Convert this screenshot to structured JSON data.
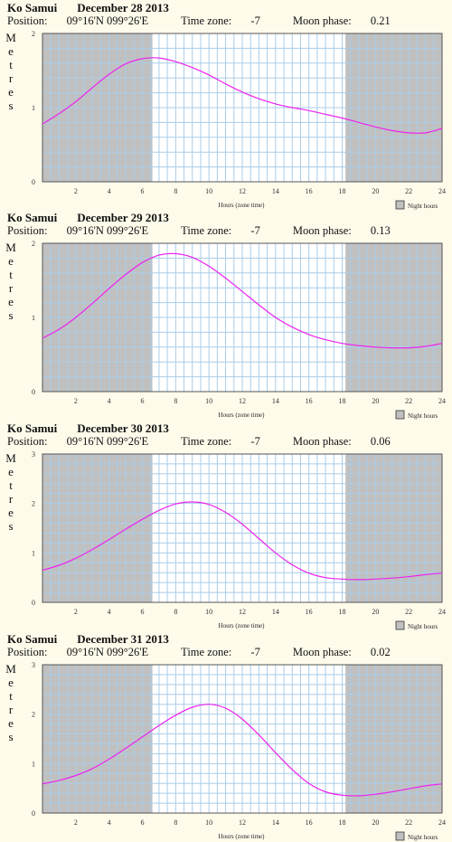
{
  "chart_data": [
    {
      "type": "line",
      "location": "Ko Samui",
      "date": "December 28 2013",
      "position_label": "Position:",
      "position": "09°16'N 099°26'E",
      "timezone_label": "Time zone:",
      "timezone": "-7",
      "moon_label": "Moon phase:",
      "moon_phase": "0.21",
      "ylabel": "Metres",
      "xlabel": "Hours (zone time)",
      "legend": "Night hours",
      "xlim": [
        0,
        24
      ],
      "ylim": [
        0,
        2
      ],
      "yticks": [
        "0",
        "1",
        "2"
      ],
      "xticks": [
        "2",
        "4",
        "6",
        "8",
        "10",
        "12",
        "14",
        "16",
        "18",
        "20",
        "22",
        "24"
      ],
      "night": [
        [
          0,
          6.6
        ],
        [
          18.2,
          24
        ]
      ],
      "x": [
        0,
        1,
        2,
        3,
        4,
        5,
        6,
        7,
        8,
        9,
        10,
        11,
        12,
        13,
        14,
        15,
        16,
        17,
        18,
        19,
        20,
        21,
        22,
        23,
        24
      ],
      "series": [
        {
          "color": "#ee22ee",
          "values": [
            0.78,
            0.92,
            1.08,
            1.27,
            1.45,
            1.59,
            1.66,
            1.67,
            1.62,
            1.54,
            1.44,
            1.32,
            1.21,
            1.12,
            1.05,
            1.0,
            0.96,
            0.91,
            0.86,
            0.8,
            0.74,
            0.69,
            0.66,
            0.66,
            0.72
          ]
        }
      ]
    },
    {
      "type": "line",
      "location": "Ko Samui",
      "date": "December 29 2013",
      "position_label": "Position:",
      "position": "09°16'N 099°26'E",
      "timezone_label": "Time zone:",
      "timezone": "-7",
      "moon_label": "Moon phase:",
      "moon_phase": "0.13",
      "ylabel": "Metres",
      "xlabel": "Hours (zone time)",
      "legend": "Night hours",
      "xlim": [
        0,
        24
      ],
      "ylim": [
        0,
        2
      ],
      "yticks": [
        "0",
        "1",
        "2"
      ],
      "xticks": [
        "2",
        "4",
        "6",
        "8",
        "10",
        "12",
        "14",
        "16",
        "18",
        "20",
        "22",
        "24"
      ],
      "night": [
        [
          0,
          6.6
        ],
        [
          18.2,
          24
        ]
      ],
      "x": [
        0,
        1,
        2,
        3,
        4,
        5,
        6,
        7,
        8,
        9,
        10,
        11,
        12,
        13,
        14,
        15,
        16,
        17,
        18,
        19,
        20,
        21,
        22,
        23,
        24
      ],
      "series": [
        {
          "color": "#ee22ee",
          "values": [
            0.72,
            0.84,
            1.0,
            1.19,
            1.39,
            1.58,
            1.74,
            1.84,
            1.86,
            1.81,
            1.69,
            1.53,
            1.35,
            1.17,
            1.0,
            0.87,
            0.77,
            0.7,
            0.65,
            0.62,
            0.6,
            0.59,
            0.59,
            0.61,
            0.65
          ]
        }
      ]
    },
    {
      "type": "line",
      "location": "Ko Samui",
      "date": "December 30 2013",
      "position_label": "Position:",
      "position": "09°16'N 099°26'E",
      "timezone_label": "Time zone:",
      "timezone": "-7",
      "moon_label": "Moon phase:",
      "moon_phase": "0.06",
      "ylabel": "Metres",
      "xlabel": "Hours (zone time)",
      "legend": "Night hours",
      "xlim": [
        0,
        24
      ],
      "ylim": [
        0,
        3
      ],
      "yticks": [
        "0",
        "1",
        "2",
        "3"
      ],
      "xticks": [
        "2",
        "4",
        "6",
        "8",
        "10",
        "12",
        "14",
        "16",
        "18",
        "20",
        "22",
        "24"
      ],
      "night": [
        [
          0,
          6.6
        ],
        [
          18.2,
          24
        ]
      ],
      "x": [
        0,
        1,
        2,
        3,
        4,
        5,
        6,
        7,
        8,
        9,
        10,
        11,
        12,
        13,
        14,
        15,
        16,
        17,
        18,
        19,
        20,
        21,
        22,
        23,
        24
      ],
      "series": [
        {
          "color": "#ee22ee",
          "values": [
            0.65,
            0.75,
            0.89,
            1.07,
            1.27,
            1.48,
            1.68,
            1.86,
            1.99,
            2.03,
            1.98,
            1.82,
            1.58,
            1.29,
            1.0,
            0.76,
            0.59,
            0.5,
            0.47,
            0.46,
            0.47,
            0.49,
            0.52,
            0.56,
            0.59
          ]
        }
      ]
    },
    {
      "type": "line",
      "location": "Ko Samui",
      "date": "December 31 2013",
      "position_label": "Position:",
      "position": "09°16'N 099°26'E",
      "timezone_label": "Time zone:",
      "timezone": "-7",
      "moon_label": "Moon phase:",
      "moon_phase": "0.02",
      "ylabel": "Metres",
      "xlabel": "Hours (zone time)",
      "legend": "Night hours",
      "xlim": [
        0,
        24
      ],
      "ylim": [
        0,
        3
      ],
      "yticks": [
        "0",
        "1",
        "2",
        "3"
      ],
      "xticks": [
        "2",
        "4",
        "6",
        "8",
        "10",
        "12",
        "14",
        "16",
        "18",
        "20",
        "22",
        "24"
      ],
      "night": [
        [
          0,
          6.6
        ],
        [
          18.2,
          24
        ]
      ],
      "x": [
        0,
        1,
        2,
        3,
        4,
        5,
        6,
        7,
        8,
        9,
        10,
        11,
        12,
        13,
        14,
        15,
        16,
        17,
        18,
        19,
        20,
        21,
        22,
        23,
        24
      ],
      "series": [
        {
          "color": "#ee22ee",
          "values": [
            0.59,
            0.66,
            0.76,
            0.9,
            1.09,
            1.31,
            1.54,
            1.77,
            1.98,
            2.14,
            2.2,
            2.12,
            1.9,
            1.58,
            1.22,
            0.88,
            0.6,
            0.43,
            0.36,
            0.35,
            0.38,
            0.43,
            0.49,
            0.55,
            0.59
          ]
        }
      ]
    }
  ]
}
